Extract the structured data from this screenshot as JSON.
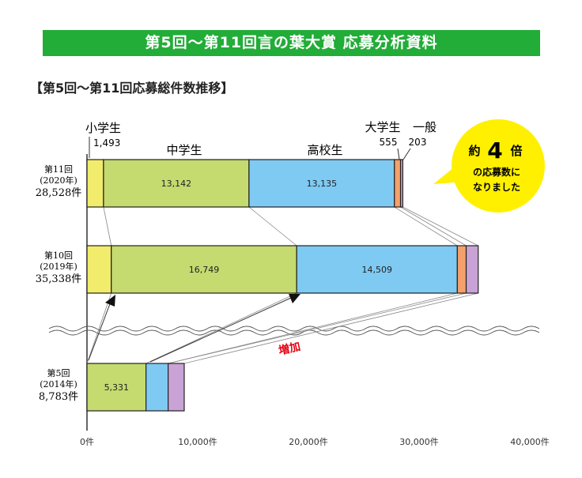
{
  "header": {
    "banner": "第5回〜第11回言の葉大賞 応募分析資料",
    "subtitle": "【第5回〜第11回応募総件数推移】"
  },
  "annotations": {
    "increase": "増加",
    "bubble_line1_a": "約",
    "bubble_line1_b": "4",
    "bubble_line1_c": "倍",
    "bubble_line2": "の応募数に",
    "bubble_line3": "なりました"
  },
  "colors": {
    "banner": "#22ac38",
    "elementary": "#f2ec6c",
    "junior_high": "#c5da6f",
    "high_school": "#7fcaf3",
    "university": "#f3a06a",
    "general": "#c9a3d6",
    "bubble": "#fff000",
    "increase_text": "#e60012"
  },
  "chart_data": {
    "type": "bar",
    "orientation": "horizontal",
    "stacked": true,
    "xlim": [
      0,
      40000
    ],
    "ticks": [
      {
        "value": 0,
        "label": "0件"
      },
      {
        "value": 10000,
        "label": "10,000件"
      },
      {
        "value": 20000,
        "label": "20,000件"
      },
      {
        "value": 30000,
        "label": "30,000件"
      },
      {
        "value": 40000,
        "label": "40,000件"
      }
    ],
    "categories": [
      {
        "round": "第11回",
        "year": "(2020年)",
        "total": "28,528件"
      },
      {
        "round": "第10回",
        "year": "(2019年)",
        "total": "35,338件"
      },
      {
        "round": "第5回",
        "year": "(2014年)",
        "total": "8,783件"
      }
    ],
    "series": [
      {
        "name": "小学生",
        "values": [
          1493,
          2195,
          0
        ],
        "labels": [
          "1,493",
          "",
          ""
        ]
      },
      {
        "name": "中学生",
        "values": [
          13142,
          16749,
          5331
        ],
        "labels": [
          "13,142",
          "16,749",
          "5,331"
        ]
      },
      {
        "name": "高校生",
        "values": [
          13135,
          14509,
          2000
        ],
        "labels": [
          "13,135",
          "14,509",
          ""
        ]
      },
      {
        "name": "大学生",
        "values": [
          555,
          800,
          0
        ],
        "labels": [
          "555",
          "",
          ""
        ]
      },
      {
        "name": "一般",
        "values": [
          203,
          1085,
          1452
        ],
        "labels": [
          "203",
          "",
          ""
        ]
      }
    ]
  }
}
